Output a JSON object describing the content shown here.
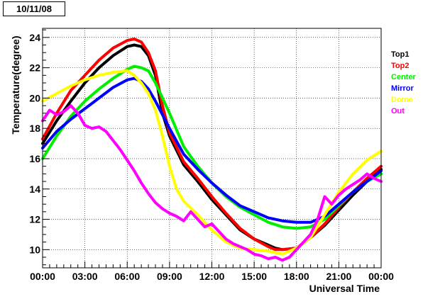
{
  "header": {
    "date_label": "10/11/08"
  },
  "chart_data": {
    "type": "line",
    "title": "",
    "xlabel": "Universal Time",
    "ylabel": "Temperature(degree)",
    "xlim": [
      0,
      24
    ],
    "ylim": [
      8.8,
      24.6
    ],
    "x_ticks": [
      {
        "value": 0,
        "label": "00:00"
      },
      {
        "value": 3,
        "label": "03:00"
      },
      {
        "value": 6,
        "label": "06:00"
      },
      {
        "value": 9,
        "label": "09:00"
      },
      {
        "value": 12,
        "label": "12:00"
      },
      {
        "value": 15,
        "label": "15:00"
      },
      {
        "value": 18,
        "label": "18:00"
      },
      {
        "value": 21,
        "label": "21:00"
      },
      {
        "value": 24,
        "label": "00:00"
      }
    ],
    "y_ticks": [
      10,
      12,
      14,
      16,
      18,
      20,
      22,
      24
    ],
    "grid": true,
    "legend_position": "right",
    "series": [
      {
        "name": "Top1",
        "color": "#000000",
        "x": [
          0,
          1,
          2,
          3,
          4,
          5,
          6,
          6.5,
          7,
          7.5,
          8,
          8.5,
          9,
          10,
          11,
          12,
          13,
          14,
          15,
          16,
          16.5,
          17,
          18,
          19,
          20,
          21,
          22,
          23,
          24
        ],
        "y": [
          17.0,
          18.5,
          19.8,
          21.0,
          22.0,
          22.8,
          23.4,
          23.5,
          23.4,
          22.8,
          21.5,
          19.0,
          17.5,
          15.6,
          14.5,
          13.3,
          12.3,
          11.3,
          10.7,
          10.3,
          10.1,
          10.0,
          10.1,
          10.8,
          11.6,
          12.6,
          13.6,
          14.5,
          15.3
        ]
      },
      {
        "name": "Top2",
        "color": "#ff0000",
        "x": [
          0,
          1,
          2,
          3,
          4,
          5,
          6,
          6.5,
          7,
          7.5,
          8,
          8.5,
          9,
          10,
          11,
          12,
          13,
          14,
          15,
          16,
          16.5,
          17,
          18,
          19,
          20,
          21,
          22,
          23,
          24
        ],
        "y": [
          17.3,
          19.0,
          20.5,
          21.5,
          22.5,
          23.3,
          23.8,
          23.9,
          23.7,
          23.0,
          21.8,
          19.5,
          17.7,
          15.8,
          14.7,
          13.5,
          12.4,
          11.4,
          10.7,
          10.2,
          10.0,
          10.0,
          10.1,
          10.8,
          11.7,
          12.8,
          13.8,
          14.7,
          15.5
        ]
      },
      {
        "name": "Center",
        "color": "#00ee00",
        "x": [
          0,
          1,
          2,
          3,
          4,
          5,
          6,
          6.5,
          7,
          7.5,
          8,
          9,
          10,
          11,
          12,
          13,
          14,
          15,
          16,
          17,
          18,
          19,
          20,
          21,
          22,
          23,
          24
        ],
        "y": [
          16.0,
          17.5,
          18.8,
          19.8,
          20.6,
          21.3,
          21.9,
          22.1,
          22.0,
          21.8,
          21.0,
          19.0,
          16.8,
          15.5,
          14.4,
          13.5,
          12.8,
          12.3,
          11.8,
          11.5,
          11.4,
          11.5,
          12.0,
          12.9,
          13.8,
          14.5,
          15.0
        ]
      },
      {
        "name": "Mirror",
        "color": "#0000ff",
        "x": [
          0,
          1,
          2,
          3,
          4,
          5,
          6,
          6.5,
          7,
          7.5,
          8,
          9,
          10,
          11,
          12,
          13,
          14,
          15,
          16,
          17,
          18,
          19,
          20,
          21,
          22,
          23,
          24
        ],
        "y": [
          16.7,
          17.8,
          18.6,
          19.3,
          20.0,
          20.7,
          21.2,
          21.3,
          21.1,
          20.6,
          19.8,
          18.0,
          16.3,
          15.3,
          14.4,
          13.6,
          12.9,
          12.5,
          12.1,
          11.9,
          11.8,
          11.8,
          12.2,
          13.0,
          13.8,
          14.5,
          15.2
        ]
      },
      {
        "name": "Dome",
        "color": "#ffff00",
        "x": [
          0,
          1,
          2,
          3,
          4,
          5,
          6,
          6.5,
          7,
          7.5,
          8,
          8.5,
          9,
          9.5,
          10,
          11,
          12,
          13,
          14,
          15,
          16,
          16.5,
          17,
          18,
          19,
          20,
          21,
          22,
          23,
          24
        ],
        "y": [
          19.8,
          20.3,
          20.8,
          21.2,
          21.5,
          21.7,
          21.8,
          21.5,
          21.0,
          20.3,
          19.2,
          17.5,
          15.5,
          14.0,
          13.2,
          12.3,
          11.3,
          10.5,
          10.1,
          10.0,
          9.9,
          9.8,
          9.7,
          10.1,
          10.8,
          12.3,
          13.8,
          15.0,
          15.9,
          16.5
        ]
      },
      {
        "name": "Out",
        "color": "#ff00ff",
        "x": [
          0,
          0.5,
          1,
          1.5,
          2,
          2.5,
          3,
          3.5,
          4,
          4.5,
          5,
          5.5,
          6,
          6.5,
          7,
          7.5,
          8,
          8.5,
          9,
          9.5,
          10,
          10.5,
          11,
          11.5,
          12,
          12.5,
          13,
          13.5,
          14,
          14.5,
          15,
          15.5,
          16,
          16.5,
          17,
          17.5,
          18,
          18.5,
          19,
          19.5,
          20,
          20.5,
          21,
          21.5,
          22,
          22.5,
          23,
          23.5,
          24
        ],
        "y": [
          18.5,
          19.2,
          18.9,
          19.1,
          19.5,
          19.0,
          18.2,
          18.0,
          18.1,
          17.8,
          17.2,
          16.6,
          15.9,
          15.2,
          14.4,
          13.7,
          13.1,
          12.7,
          12.4,
          12.2,
          11.9,
          12.5,
          12.0,
          11.5,
          11.7,
          11.2,
          10.7,
          10.4,
          10.2,
          10.0,
          9.7,
          9.6,
          9.4,
          9.5,
          9.3,
          9.5,
          10.0,
          10.5,
          11.0,
          12.0,
          13.5,
          13.0,
          13.6,
          14.0,
          14.3,
          14.6,
          15.0,
          14.7,
          14.5
        ]
      }
    ]
  }
}
